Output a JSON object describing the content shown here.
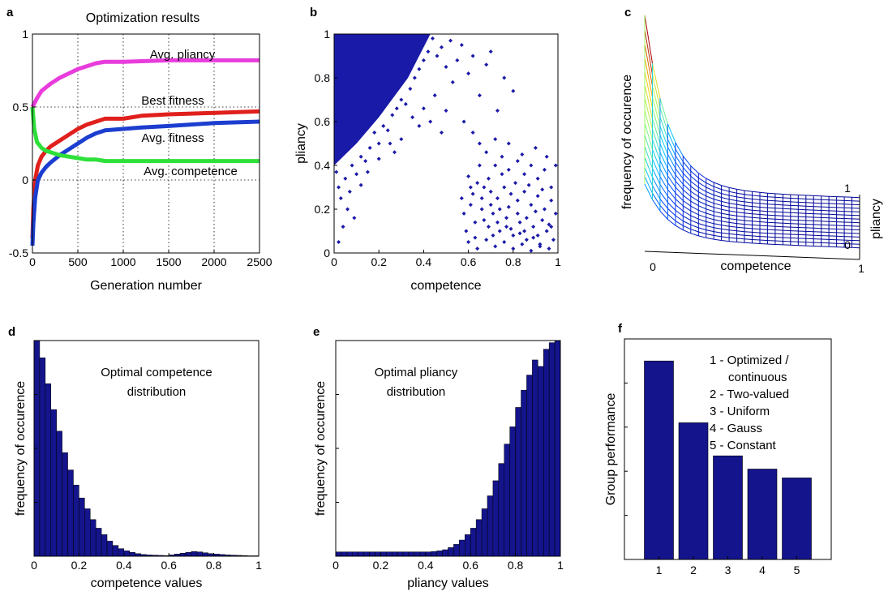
{
  "chart_data": [
    {
      "id": "a",
      "type": "line",
      "panel_label": "a",
      "title": "Optimization results",
      "xlabel": "Generation number",
      "ylabel": "",
      "xlim": [
        0,
        2500
      ],
      "ylim": [
        -0.5,
        1
      ],
      "xticks": [
        "0",
        "500",
        "1000",
        "1500",
        "2000",
        "2500"
      ],
      "yticks": [
        "-0.5",
        "0",
        "0.5",
        "1"
      ],
      "grid": true,
      "series": [
        {
          "name": "Avg. pliancy",
          "color": "#e83cdc",
          "x": [
            0,
            50,
            100,
            200,
            300,
            400,
            500,
            600,
            700,
            800,
            1000,
            1500,
            2000,
            2500
          ],
          "y": [
            0.5,
            0.56,
            0.61,
            0.66,
            0.7,
            0.73,
            0.76,
            0.78,
            0.8,
            0.81,
            0.81,
            0.82,
            0.82,
            0.82
          ]
        },
        {
          "name": "Best fitness",
          "color": "#e0201c",
          "x": [
            0,
            10,
            30,
            60,
            100,
            150,
            200,
            300,
            400,
            500,
            600,
            700,
            800,
            1000,
            1200,
            1500,
            2000,
            2500
          ],
          "y": [
            -0.4,
            -0.2,
            0.0,
            0.1,
            0.16,
            0.2,
            0.23,
            0.27,
            0.31,
            0.35,
            0.38,
            0.4,
            0.42,
            0.42,
            0.44,
            0.45,
            0.46,
            0.47
          ]
        },
        {
          "name": "Avg. fitness",
          "color": "#1c3ed0",
          "x": [
            0,
            10,
            30,
            60,
            100,
            150,
            200,
            300,
            400,
            500,
            600,
            700,
            800,
            1000,
            1200,
            1500,
            2000,
            2500
          ],
          "y": [
            -0.45,
            -0.3,
            -0.12,
            0.0,
            0.05,
            0.09,
            0.12,
            0.17,
            0.21,
            0.25,
            0.29,
            0.32,
            0.34,
            0.35,
            0.36,
            0.37,
            0.39,
            0.4
          ]
        },
        {
          "name": "Avg. competence",
          "color": "#2ee03a",
          "x": [
            0,
            20,
            50,
            100,
            150,
            200,
            300,
            400,
            500,
            600,
            700,
            800,
            1000,
            1500,
            2000,
            2500
          ],
          "y": [
            0.5,
            0.35,
            0.26,
            0.22,
            0.2,
            0.19,
            0.17,
            0.16,
            0.15,
            0.14,
            0.14,
            0.13,
            0.13,
            0.13,
            0.13,
            0.13
          ]
        }
      ]
    },
    {
      "id": "b",
      "type": "scatter",
      "panel_label": "b",
      "xlabel": "competence",
      "ylabel": "pliancy",
      "xlim": [
        0,
        1
      ],
      "ylim": [
        0,
        1
      ],
      "xticks": [
        "0",
        "0.2",
        "0.4",
        "0.6",
        "0.8",
        "1"
      ],
      "yticks": [
        "0",
        "0.2",
        "0.4",
        "0.6",
        "0.8",
        "1"
      ],
      "color": "#1a1aa8",
      "dense_region": {
        "description_values": [
          [
            0.0,
            0.4
          ],
          [
            0.0,
            1.0
          ],
          [
            0.43,
            1.0
          ],
          [
            0.33,
            0.8
          ],
          [
            0.2,
            0.62
          ],
          [
            0.1,
            0.5
          ]
        ]
      },
      "points": [
        [
          0.02,
          0.3
        ],
        [
          0.03,
          0.25
        ],
        [
          0.05,
          0.34
        ],
        [
          0.07,
          0.28
        ],
        [
          0.01,
          0.37
        ],
        [
          0.08,
          0.4
        ],
        [
          0.1,
          0.36
        ],
        [
          0.12,
          0.44
        ],
        [
          0.14,
          0.42
        ],
        [
          0.16,
          0.48
        ],
        [
          0.18,
          0.55
        ],
        [
          0.2,
          0.5
        ],
        [
          0.22,
          0.58
        ],
        [
          0.24,
          0.56
        ],
        [
          0.26,
          0.63
        ],
        [
          0.28,
          0.66
        ],
        [
          0.3,
          0.7
        ],
        [
          0.32,
          0.68
        ],
        [
          0.34,
          0.75
        ],
        [
          0.36,
          0.8
        ],
        [
          0.38,
          0.84
        ],
        [
          0.4,
          0.88
        ],
        [
          0.42,
          0.92
        ],
        [
          0.44,
          0.98
        ],
        [
          0.46,
          0.9
        ],
        [
          0.48,
          0.94
        ],
        [
          0.5,
          0.85
        ],
        [
          0.52,
          0.97
        ],
        [
          0.53,
          0.78
        ],
        [
          0.55,
          0.88
        ],
        [
          0.57,
          0.95
        ],
        [
          0.6,
          0.82
        ],
        [
          0.62,
          0.9
        ],
        [
          0.65,
          0.72
        ],
        [
          0.68,
          0.86
        ],
        [
          0.7,
          0.92
        ],
        [
          0.73,
          0.65
        ],
        [
          0.76,
          0.8
        ],
        [
          0.8,
          0.74
        ],
        [
          0.35,
          0.62
        ],
        [
          0.38,
          0.58
        ],
        [
          0.3,
          0.52
        ],
        [
          0.27,
          0.46
        ],
        [
          0.4,
          0.66
        ],
        [
          0.45,
          0.72
        ],
        [
          0.43,
          0.6
        ],
        [
          0.48,
          0.55
        ],
        [
          0.5,
          0.65
        ],
        [
          0.06,
          0.2
        ],
        [
          0.09,
          0.16
        ],
        [
          0.04,
          0.12
        ],
        [
          0.12,
          0.31
        ],
        [
          0.15,
          0.37
        ],
        [
          0.02,
          0.05
        ],
        [
          0.2,
          0.43
        ],
        [
          0.25,
          0.5
        ],
        [
          0.58,
          0.6
        ],
        [
          0.62,
          0.55
        ],
        [
          0.65,
          0.5
        ],
        [
          0.68,
          0.46
        ],
        [
          0.72,
          0.4
        ],
        [
          0.75,
          0.44
        ],
        [
          0.78,
          0.38
        ],
        [
          0.82,
          0.42
        ],
        [
          0.85,
          0.36
        ],
        [
          0.88,
          0.4
        ],
        [
          0.91,
          0.34
        ],
        [
          0.94,
          0.38
        ],
        [
          0.97,
          0.3
        ],
        [
          0.6,
          0.35
        ],
        [
          0.64,
          0.32
        ],
        [
          0.67,
          0.3
        ],
        [
          0.7,
          0.28
        ],
        [
          0.73,
          0.25
        ],
        [
          0.76,
          0.3
        ],
        [
          0.79,
          0.27
        ],
        [
          0.82,
          0.24
        ],
        [
          0.85,
          0.28
        ],
        [
          0.88,
          0.22
        ],
        [
          0.91,
          0.26
        ],
        [
          0.94,
          0.2
        ],
        [
          0.97,
          0.24
        ],
        [
          0.99,
          0.18
        ],
        [
          0.58,
          0.18
        ],
        [
          0.61,
          0.22
        ],
        [
          0.63,
          0.14
        ],
        [
          0.66,
          0.2
        ],
        [
          0.69,
          0.12
        ],
        [
          0.71,
          0.18
        ],
        [
          0.74,
          0.1
        ],
        [
          0.77,
          0.16
        ],
        [
          0.8,
          0.08
        ],
        [
          0.83,
          0.14
        ],
        [
          0.86,
          0.06
        ],
        [
          0.89,
          0.12
        ],
        [
          0.92,
          0.04
        ],
        [
          0.95,
          0.1
        ],
        [
          0.98,
          0.06
        ],
        [
          0.6,
          0.05
        ],
        [
          0.64,
          0.02
        ],
        [
          0.68,
          0.06
        ],
        [
          0.72,
          0.03
        ],
        [
          0.76,
          0.05
        ],
        [
          0.8,
          0.02
        ],
        [
          0.84,
          0.04
        ],
        [
          0.88,
          0.01
        ],
        [
          0.92,
          0.03
        ],
        [
          0.96,
          0.02
        ],
        [
          0.62,
          0.27
        ],
        [
          0.66,
          0.25
        ],
        [
          0.7,
          0.22
        ],
        [
          0.74,
          0.2
        ],
        [
          0.78,
          0.21
        ],
        [
          0.82,
          0.18
        ],
        [
          0.86,
          0.16
        ],
        [
          0.9,
          0.19
        ],
        [
          0.93,
          0.15
        ],
        [
          0.96,
          0.13
        ],
        [
          0.69,
          0.34
        ],
        [
          0.75,
          0.36
        ],
        [
          0.81,
          0.32
        ],
        [
          0.87,
          0.31
        ],
        [
          0.93,
          0.29
        ],
        [
          0.65,
          0.4
        ],
        [
          0.71,
          0.08
        ],
        [
          0.77,
          0.12
        ],
        [
          0.83,
          0.09
        ],
        [
          0.89,
          0.07
        ],
        [
          0.67,
          0.15
        ],
        [
          0.73,
          0.14
        ],
        [
          0.79,
          0.11
        ],
        [
          0.85,
          0.1
        ],
        [
          0.91,
          0.08
        ],
        [
          0.97,
          0.12
        ],
        [
          0.59,
          0.1
        ],
        [
          0.63,
          0.07
        ],
        [
          0.57,
          0.25
        ],
        [
          0.61,
          0.3
        ],
        [
          0.84,
          0.45
        ],
        [
          0.9,
          0.48
        ],
        [
          0.95,
          0.44
        ],
        [
          0.99,
          0.4
        ],
        [
          0.72,
          0.52
        ],
        [
          0.78,
          0.5
        ]
      ]
    },
    {
      "id": "c",
      "type": "surface",
      "panel_label": "c",
      "xlabel": "competence",
      "ylabel": "pliancy",
      "zlabel": "frequency of occurence",
      "xticks": [
        "0",
        "1"
      ],
      "yticks": [
        "0",
        "1"
      ]
    },
    {
      "id": "d",
      "type": "bar",
      "panel_label": "d",
      "xlabel": "competence values",
      "ylabel": "frequency of occurence",
      "xlim": [
        0,
        1
      ],
      "ylim": [
        0,
        1
      ],
      "xticks": [
        "0",
        "0.2",
        "0.4",
        "0.6",
        "0.8",
        "1"
      ],
      "annotation": [
        "Optimal competence",
        "distribution"
      ],
      "color": "#14148c",
      "values": [
        1.0,
        0.92,
        0.8,
        0.68,
        0.58,
        0.48,
        0.4,
        0.33,
        0.27,
        0.22,
        0.17,
        0.13,
        0.1,
        0.07,
        0.05,
        0.035,
        0.025,
        0.018,
        0.012,
        0.008,
        0.006,
        0.005,
        0.004,
        0.003,
        0.006,
        0.01,
        0.014,
        0.018,
        0.022,
        0.02,
        0.016,
        0.012,
        0.01,
        0.008,
        0.006,
        0.005,
        0.004,
        0.003,
        0.002,
        0.002
      ]
    },
    {
      "id": "e",
      "type": "bar",
      "panel_label": "e",
      "xlabel": "pliancy values",
      "ylabel": "frequency of occurence",
      "xlim": [
        0,
        1
      ],
      "ylim": [
        0,
        1
      ],
      "xticks": [
        "0",
        "0.2",
        "0.4",
        "0.6",
        "0.8",
        "1"
      ],
      "annotation": [
        "Optimal pliancy",
        "distribution"
      ],
      "color": "#14148c",
      "values": [
        0.02,
        0.02,
        0.02,
        0.02,
        0.02,
        0.02,
        0.02,
        0.02,
        0.02,
        0.02,
        0.02,
        0.02,
        0.02,
        0.02,
        0.02,
        0.02,
        0.02,
        0.022,
        0.025,
        0.03,
        0.04,
        0.055,
        0.075,
        0.1,
        0.13,
        0.17,
        0.22,
        0.28,
        0.35,
        0.43,
        0.52,
        0.6,
        0.69,
        0.77,
        0.84,
        0.91,
        0.88,
        0.96,
        0.99,
        1.0
      ]
    },
    {
      "id": "f",
      "type": "bar",
      "panel_label": "f",
      "xlabel": "",
      "ylabel": "Group performance",
      "categories": [
        "1",
        "2",
        "3",
        "4",
        "5"
      ],
      "values": [
        0.9,
        0.62,
        0.47,
        0.41,
        0.37
      ],
      "ylim": [
        0,
        1
      ],
      "color": "#14148c",
      "legend_lines": [
        "1 - Optimized /",
        "continuous",
        "2 - Two-valued",
        "3 - Uniform",
        "4 - Gauss",
        "5 - Constant"
      ]
    }
  ]
}
